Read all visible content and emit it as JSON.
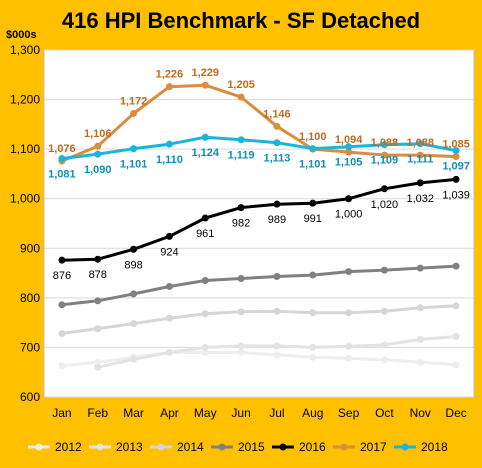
{
  "chart_data": {
    "type": "line",
    "title": "416 HPI Benchmark - SF Detached",
    "unit_label": "$000s",
    "xlabel": "",
    "ylabel": "",
    "categories": [
      "Jan",
      "Feb",
      "Mar",
      "Apr",
      "May",
      "Jun",
      "Jul",
      "Aug",
      "Sep",
      "Oct",
      "Nov",
      "Dec"
    ],
    "ylim": [
      600,
      1300
    ],
    "yticks": [
      600,
      700,
      800,
      900,
      1000,
      1100,
      1200,
      1300
    ],
    "ytick_labels": [
      "600",
      "700",
      "800",
      "900",
      "1,000",
      "1,100",
      "1,200",
      "1,300"
    ],
    "grid": true,
    "legend_position": "bottom",
    "series": [
      {
        "name": "2012",
        "color": "#EDEDED",
        "labels": false,
        "values": [
          663,
          670,
          680,
          690,
          690,
          690,
          685,
          680,
          678,
          675,
          670,
          665
        ]
      },
      {
        "name": "2013",
        "color": "#E3E3E3",
        "labels": false,
        "values": [
          null,
          660,
          676,
          690,
          700,
          703,
          703,
          700,
          702,
          705,
          716,
          722
        ]
      },
      {
        "name": "2014",
        "color": "#D6D6D6",
        "labels": false,
        "values": [
          728,
          738,
          748,
          759,
          768,
          772,
          773,
          770,
          770,
          773,
          780,
          784
        ]
      },
      {
        "name": "2015",
        "color": "#808080",
        "labels": false,
        "values": [
          786,
          794,
          808,
          823,
          835,
          839,
          843,
          846,
          853,
          856,
          860,
          864
        ]
      },
      {
        "name": "2016",
        "color": "#000000",
        "labels": true,
        "label_position": "below",
        "label_color": "#000000",
        "values": [
          876,
          878,
          898,
          924,
          961,
          982,
          989,
          991,
          1000,
          1020,
          1032,
          1039
        ],
        "value_labels": [
          "876",
          "878",
          "898",
          "924",
          "961",
          "982",
          "989",
          "991",
          "1,000",
          "1,020",
          "1,032",
          "1,039"
        ]
      },
      {
        "name": "2017",
        "color": "#D98E3F",
        "labels": true,
        "label_position": "above",
        "label_color": "#C06A1E",
        "values": [
          1076,
          1106,
          1172,
          1226,
          1229,
          1205,
          1146,
          1100,
          1094,
          1088,
          1088,
          1085
        ],
        "value_labels": [
          "1,076",
          "1,106",
          "1,172",
          "1,226",
          "1,229",
          "1,205",
          "1,146",
          "1,100",
          "1,094",
          "1,088",
          "1,088",
          "1,085"
        ]
      },
      {
        "name": "2018",
        "color": "#1CB4D8",
        "labels": true,
        "label_position": "below",
        "label_color": "#0E8FB8",
        "values": [
          1081,
          1090,
          1101,
          1110,
          1124,
          1119,
          1113,
          1101,
          1105,
          1109,
          1111,
          1097
        ],
        "value_labels": [
          "1,081",
          "1,090",
          "1,101",
          "1,110",
          "1,124",
          "1,119",
          "1,113",
          "1,101",
          "1,105",
          "1,109",
          "1,111",
          "1,097"
        ]
      }
    ]
  }
}
